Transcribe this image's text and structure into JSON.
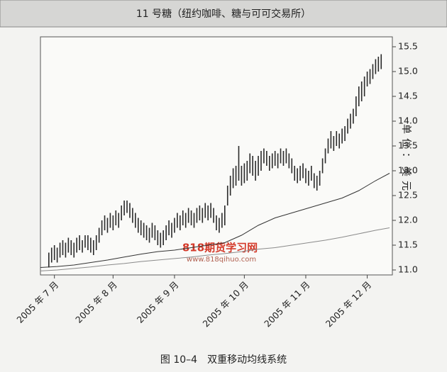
{
  "chart_data": {
    "type": "range-bar",
    "title": "11 号糖（纽约咖啡、糖与可可交易所）",
    "y_label": "单位：美元",
    "caption": "图 10–4　双重移动均线系统",
    "watermark": "818期货学习网",
    "watermark_url": "www.818qihuo.com",
    "xlim": [
      0,
      126
    ],
    "xticks": [
      {
        "value": 5,
        "label": "2005 年 7 月"
      },
      {
        "value": 26,
        "label": "2005 年 8 月"
      },
      {
        "value": 48,
        "label": "2005 年 9 月"
      },
      {
        "value": 73,
        "label": "2005 年 10 月"
      },
      {
        "value": 95,
        "label": "2005 年 11 月"
      },
      {
        "value": 117,
        "label": "2005 年 12 月"
      }
    ],
    "ylim": [
      10.9,
      15.7
    ],
    "yticks": [
      {
        "value": 11,
        "label": "11.0"
      },
      11.5,
      {
        "value": 12,
        "label": "12.0"
      },
      12.5,
      {
        "value": 13,
        "label": "13.0"
      },
      13.5,
      {
        "value": 14,
        "label": "14.0"
      },
      14.5,
      {
        "value": 15,
        "label": "15.0"
      },
      15.5
    ],
    "bars": {
      "color": "#2a2a2a",
      "x": [
        3,
        4,
        5,
        6,
        7,
        8,
        9,
        10,
        11,
        12,
        13,
        14,
        15,
        16,
        17,
        18,
        19,
        20,
        21,
        22,
        23,
        24,
        25,
        26,
        27,
        28,
        29,
        30,
        31,
        32,
        33,
        34,
        35,
        36,
        37,
        38,
        39,
        40,
        41,
        42,
        43,
        44,
        45,
        46,
        47,
        48,
        49,
        50,
        51,
        52,
        53,
        54,
        55,
        56,
        57,
        58,
        59,
        60,
        61,
        62,
        63,
        64,
        65,
        66,
        67,
        68,
        69,
        70,
        71,
        72,
        73,
        74,
        75,
        76,
        77,
        78,
        79,
        80,
        81,
        82,
        83,
        84,
        85,
        86,
        87,
        88,
        89,
        90,
        91,
        92,
        93,
        94,
        95,
        96,
        97,
        98,
        99,
        100,
        101,
        102,
        103,
        104,
        105,
        106,
        107,
        108,
        109,
        110,
        111,
        112,
        113,
        114,
        115,
        116,
        117,
        118,
        119,
        120,
        121,
        122
      ],
      "high": [
        11.35,
        11.45,
        11.5,
        11.45,
        11.55,
        11.6,
        11.55,
        11.65,
        11.6,
        11.55,
        11.65,
        11.7,
        11.6,
        11.7,
        11.7,
        11.65,
        11.6,
        11.7,
        11.85,
        12.0,
        12.1,
        12.05,
        12.15,
        12.1,
        12.2,
        12.15,
        12.3,
        12.4,
        12.4,
        12.35,
        12.25,
        12.15,
        12.05,
        12.0,
        11.95,
        11.9,
        11.85,
        11.95,
        11.9,
        11.8,
        11.75,
        11.8,
        11.9,
        12.0,
        11.95,
        12.05,
        12.15,
        12.1,
        12.2,
        12.15,
        12.25,
        12.2,
        12.15,
        12.25,
        12.3,
        12.25,
        12.35,
        12.3,
        12.35,
        12.25,
        12.1,
        12.05,
        12.15,
        12.3,
        12.7,
        12.9,
        13.05,
        13.1,
        13.5,
        13.1,
        13.15,
        13.2,
        13.35,
        13.3,
        13.2,
        13.3,
        13.4,
        13.45,
        13.4,
        13.3,
        13.35,
        13.4,
        13.35,
        13.45,
        13.4,
        13.45,
        13.35,
        13.25,
        13.1,
        13.05,
        13.1,
        13.15,
        13.05,
        13.0,
        13.1,
        12.95,
        12.9,
        13.0,
        13.25,
        13.45,
        13.65,
        13.8,
        13.7,
        13.8,
        13.75,
        13.85,
        13.9,
        14.05,
        14.15,
        14.25,
        14.5,
        14.7,
        14.8,
        14.9,
        15.0,
        15.05,
        15.15,
        15.25,
        15.3,
        15.35
      ],
      "low": [
        11.05,
        11.15,
        11.2,
        11.15,
        11.25,
        11.3,
        11.25,
        11.35,
        11.3,
        11.25,
        11.35,
        11.4,
        11.35,
        11.45,
        11.4,
        11.35,
        11.3,
        11.4,
        11.55,
        11.7,
        11.8,
        11.75,
        11.85,
        11.8,
        11.9,
        11.85,
        12.0,
        12.1,
        12.15,
        12.05,
        11.95,
        11.85,
        11.75,
        11.7,
        11.65,
        11.6,
        11.55,
        11.65,
        11.6,
        11.5,
        11.45,
        11.5,
        11.6,
        11.7,
        11.65,
        11.75,
        11.85,
        11.8,
        11.9,
        11.85,
        11.95,
        11.9,
        11.85,
        11.95,
        12.0,
        11.95,
        12.05,
        12.0,
        12.05,
        11.95,
        11.8,
        11.75,
        11.85,
        11.9,
        12.3,
        12.5,
        12.65,
        12.7,
        12.8,
        12.7,
        12.75,
        12.8,
        12.95,
        12.9,
        12.8,
        12.9,
        13.0,
        13.15,
        13.1,
        13.0,
        13.05,
        13.1,
        13.05,
        13.15,
        13.1,
        13.15,
        13.05,
        12.95,
        12.8,
        12.75,
        12.8,
        12.85,
        12.75,
        12.7,
        12.8,
        12.65,
        12.6,
        12.7,
        12.95,
        13.15,
        13.35,
        13.45,
        13.4,
        13.5,
        13.45,
        13.55,
        13.6,
        13.75,
        13.85,
        13.95,
        14.1,
        14.3,
        14.4,
        14.5,
        14.7,
        14.75,
        14.85,
        14.95,
        15.0,
        15.05
      ]
    },
    "series": [
      {
        "color": "#333333",
        "x": [
          0,
          6,
          12,
          18,
          24,
          30,
          36,
          42,
          48,
          54,
          60,
          66,
          72,
          78,
          84,
          90,
          96,
          102,
          108,
          114,
          120,
          125
        ],
        "values": [
          11.05,
          11.07,
          11.1,
          11.15,
          11.2,
          11.26,
          11.32,
          11.37,
          11.4,
          11.45,
          11.5,
          11.55,
          11.7,
          11.9,
          12.05,
          12.15,
          12.25,
          12.35,
          12.45,
          12.6,
          12.8,
          12.95
        ]
      },
      {
        "color": "#8a8a8a",
        "x": [
          0,
          6,
          12,
          18,
          24,
          30,
          36,
          42,
          48,
          54,
          60,
          66,
          72,
          78,
          84,
          90,
          96,
          102,
          108,
          114,
          120,
          125
        ],
        "values": [
          10.98,
          11.0,
          11.03,
          11.06,
          11.1,
          11.13,
          11.17,
          11.2,
          11.23,
          11.26,
          11.3,
          11.33,
          11.37,
          11.42,
          11.45,
          11.5,
          11.55,
          11.6,
          11.66,
          11.73,
          11.8,
          11.85
        ]
      }
    ]
  }
}
